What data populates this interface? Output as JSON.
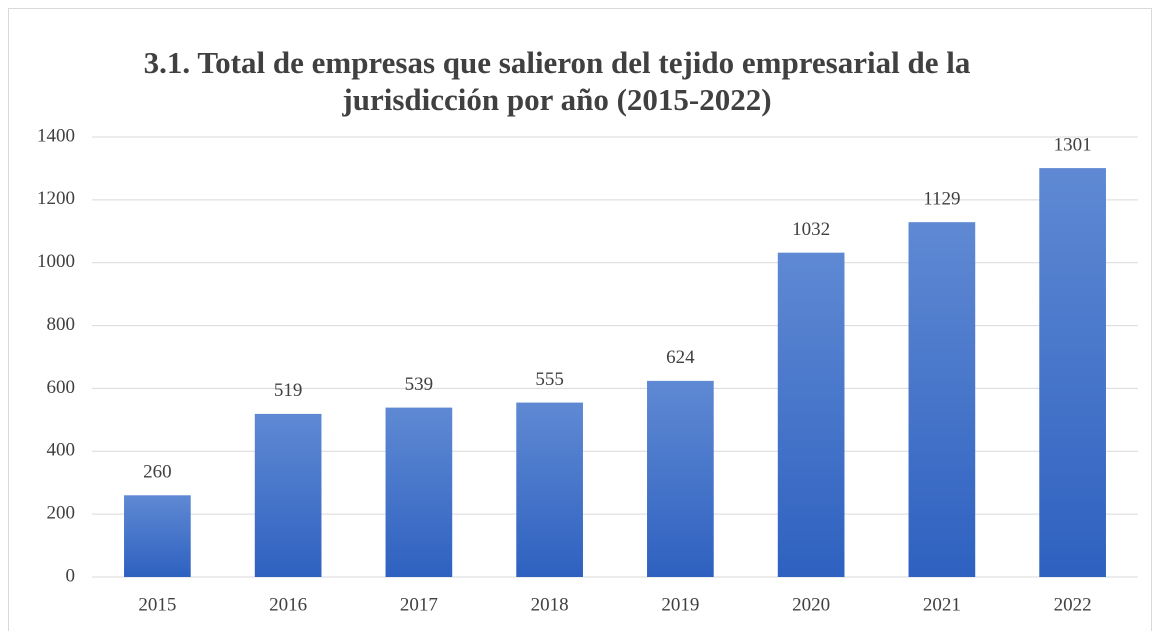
{
  "chart_data": {
    "type": "bar",
    "title": [
      "3.1. Total de empresas que salieron del tejido empresarial de la",
      "jurisdicción por año (2015-2022)"
    ],
    "categories": [
      "2015",
      "2016",
      "2017",
      "2018",
      "2019",
      "2020",
      "2021",
      "2022"
    ],
    "values": [
      260,
      519,
      539,
      555,
      624,
      1032,
      1129,
      1301
    ],
    "color": "#4472c4",
    "ylim": [
      0,
      1400
    ],
    "yticks": [
      0,
      200,
      400,
      600,
      800,
      1000,
      1200,
      1400
    ],
    "grid": true
  }
}
